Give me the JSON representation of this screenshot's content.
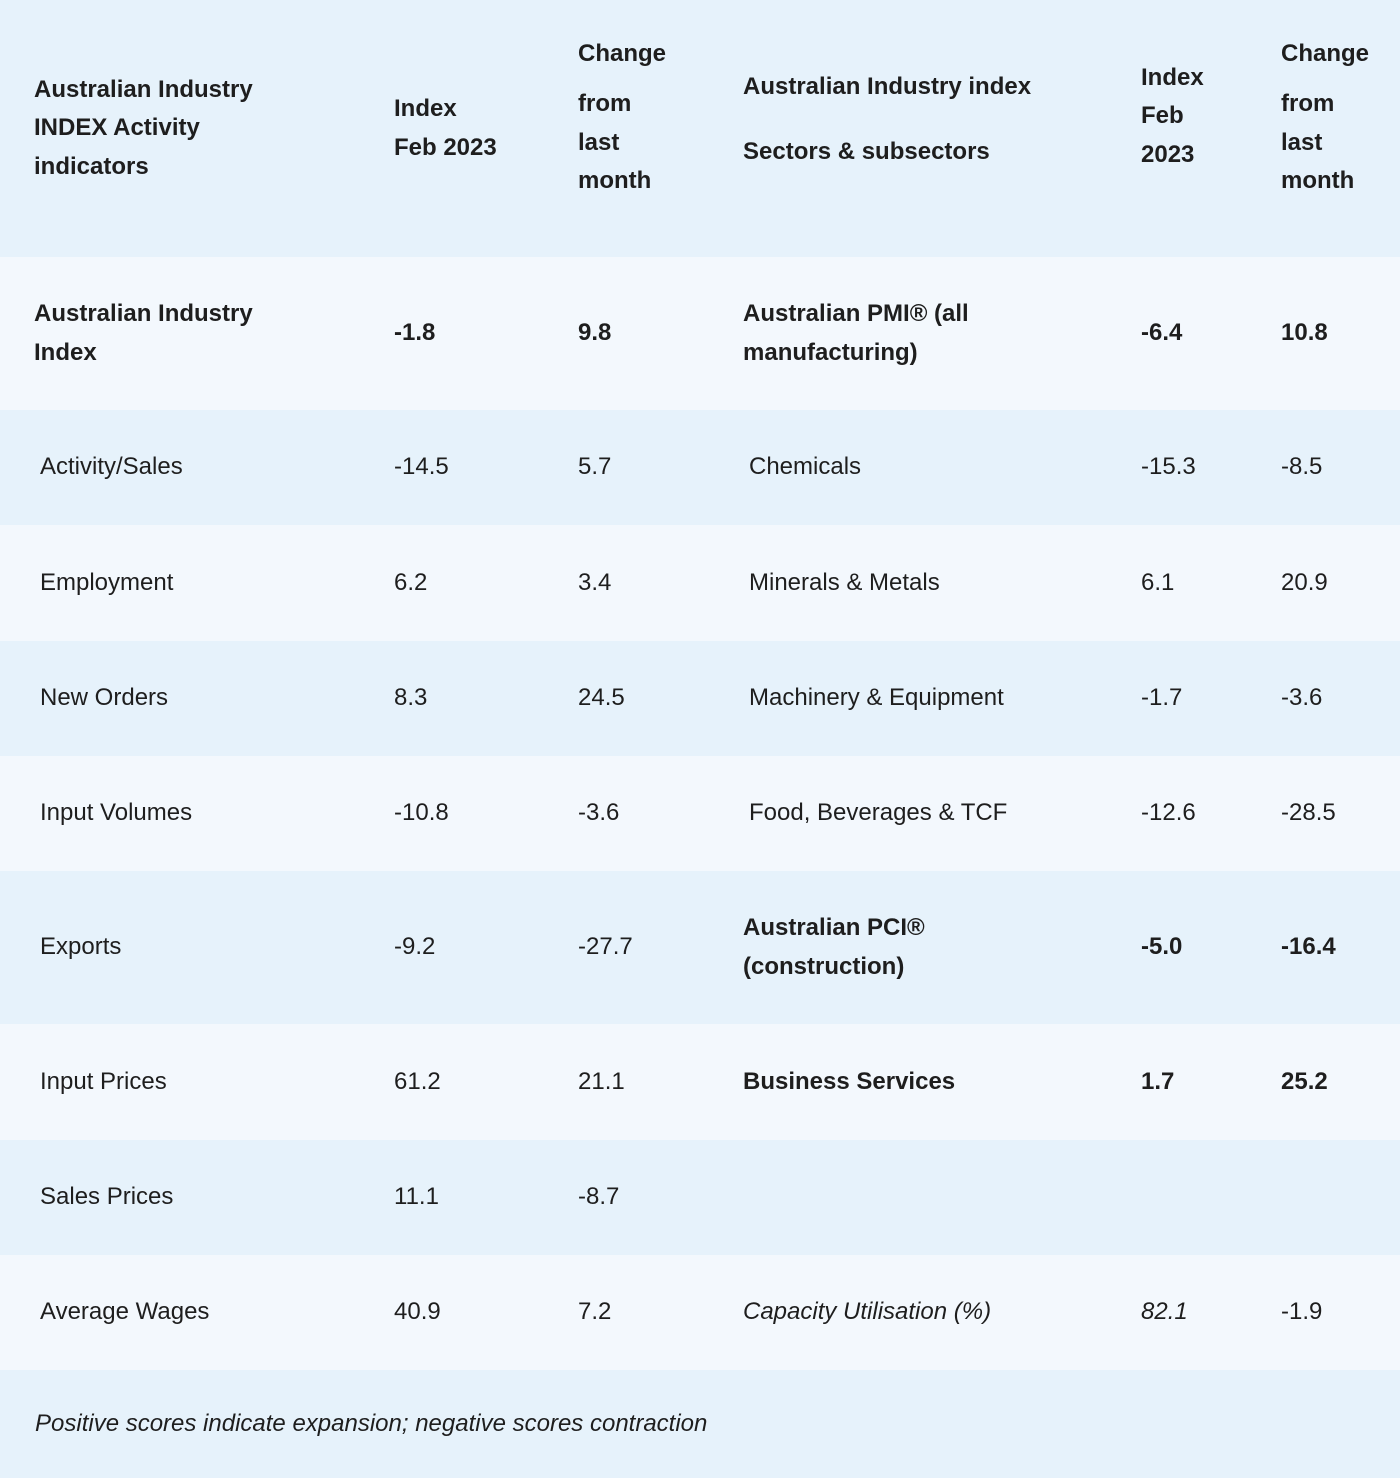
{
  "header": {
    "col1": [
      "Australian Industry",
      "INDEX Activity",
      "indicators"
    ],
    "col2": [
      "Index",
      "Feb 2023"
    ],
    "col3": [
      "Change",
      "",
      "from",
      "last",
      "month"
    ],
    "col4": [
      "Australian Industry index",
      "",
      "Sectors & subsectors"
    ],
    "col5": [
      "Index",
      "Feb",
      "2023"
    ],
    "col6": [
      "Change",
      "",
      "from",
      "last",
      "month"
    ]
  },
  "rows": [
    {
      "indicator": [
        "Australian Industry",
        "Index"
      ],
      "index": "-1.8",
      "change": "9.8",
      "sector": [
        "Australian PMI® (all",
        "manufacturing)"
      ],
      "sector_index": "-6.4",
      "sector_change": "10.8"
    },
    {
      "indicator": "Activity/Sales",
      "index": "-14.5",
      "change": "5.7",
      "sector": "Chemicals",
      "sector_index": "-15.3",
      "sector_change": "-8.5"
    },
    {
      "indicator": "Employment",
      "index": "6.2",
      "change": "3.4",
      "sector": "Minerals & Metals",
      "sector_index": "6.1",
      "sector_change": "20.9"
    },
    {
      "indicator": "New Orders",
      "index": "8.3",
      "change": "24.5",
      "sector": "Machinery & Equipment",
      "sector_index": "-1.7",
      "sector_change": "-3.6"
    },
    {
      "indicator": "Input Volumes",
      "index": "-10.8",
      "change": "-3.6",
      "sector": "Food, Beverages & TCF",
      "sector_index": "-12.6",
      "sector_change": "-28.5"
    },
    {
      "indicator": "Exports",
      "index": "-9.2",
      "change": "-27.7",
      "sector": [
        "Australian PCI®",
        "(construction)"
      ],
      "sector_index": "-5.0",
      "sector_change": "-16.4"
    },
    {
      "indicator": "Input Prices",
      "index": "61.2",
      "change": "21.1",
      "sector": "Business Services",
      "sector_index": "1.7",
      "sector_change": "25.2"
    },
    {
      "indicator": "Sales Prices",
      "index": "11.1",
      "change": "-8.7",
      "sector": "",
      "sector_index": "",
      "sector_change": ""
    },
    {
      "indicator": "Average Wages",
      "index": "40.9",
      "change": "7.2",
      "sector": "Capacity Utilisation (%)",
      "sector_index": "82.1",
      "sector_change": "-1.9"
    }
  ],
  "footnote": "Positive scores indicate expansion; negative scores contraction"
}
